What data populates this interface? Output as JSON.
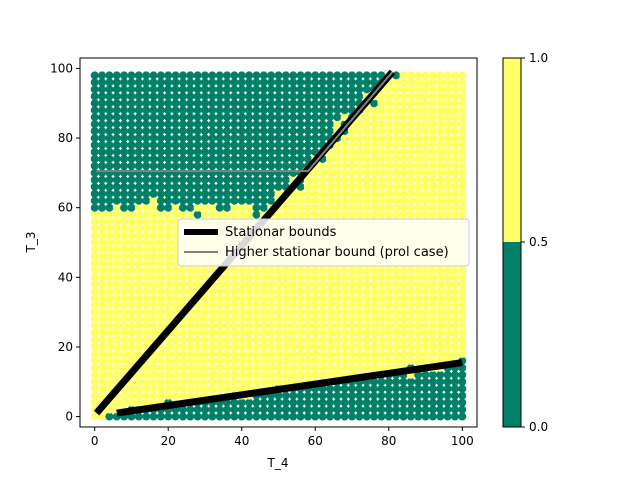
{
  "chart_data": {
    "type": "scatter",
    "xlabel": "T_4",
    "ylabel": "T_3",
    "xlim": [
      -4,
      104
    ],
    "ylim": [
      -3,
      103
    ],
    "xticks": [
      0,
      20,
      40,
      60,
      80,
      100
    ],
    "yticks": [
      0,
      20,
      40,
      60,
      80,
      100
    ],
    "grid": false,
    "series": [
      {
        "name": "Stationar bounds",
        "kind": "line",
        "color": "#000000",
        "segments": [
          [
            [
              0.5,
              1
            ],
            [
              81,
              99
            ]
          ],
          [
            [
              6,
              1
            ],
            [
              100,
              15.5
            ]
          ]
        ]
      },
      {
        "name": "Higher stationar bound (prol case)",
        "kind": "line",
        "color": "#808080",
        "segments": [
          [
            [
              0.5,
              70.5
            ],
            [
              58,
              70.5
            ],
            [
              81,
              99
            ]
          ]
        ]
      }
    ],
    "scatter_field": {
      "x_range": [
        0,
        100
      ],
      "y_range": [
        0,
        99
      ],
      "value_1_color": "#ffff66",
      "value_0_color": "#008066",
      "regions": [
        "value 0 (green) above upper-left region roughly y > 60 and above the line from (0,1) to (81,99)",
        "value 0 (green) below the lower line from (6,1) to (100,15.5)",
        "value 1 (yellow) elsewhere"
      ]
    },
    "legend": {
      "placement": "center-right",
      "entries": [
        "Stationar bounds",
        "Higher stationar bound (prol case)"
      ]
    },
    "colorbar": {
      "ticks": [
        "0.0",
        "0.5",
        "1.0"
      ],
      "segments": [
        {
          "from": 0.0,
          "to": 0.5,
          "color": "#008066"
        },
        {
          "from": 0.5,
          "to": 1.0,
          "color": "#ffff66"
        }
      ]
    }
  }
}
